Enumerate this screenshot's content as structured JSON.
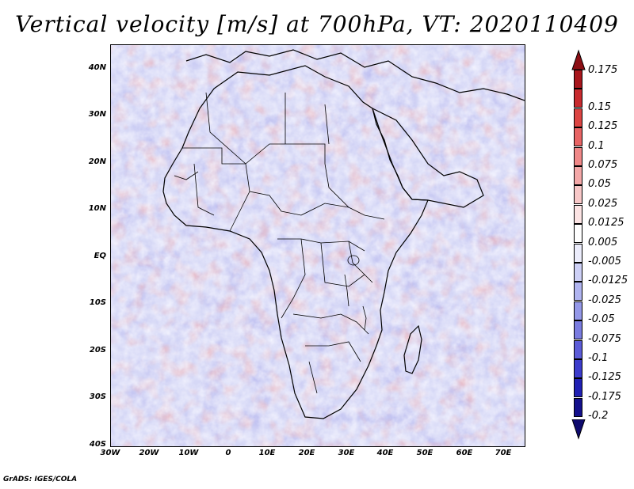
{
  "title": "Vertical velocity [m/s] at 700hPa, VT: 2020110409",
  "credit": "GrADS: IGES/COLA",
  "lat_labels": [
    "40N",
    "30N",
    "20N",
    "10N",
    "EQ",
    "10S",
    "20S",
    "30S",
    "40S"
  ],
  "lon_labels": [
    "30W",
    "20W",
    "10W",
    "0",
    "10E",
    "20E",
    "30E",
    "40E",
    "50E",
    "60E",
    "70E"
  ],
  "colorbar": {
    "levels": [
      "0.175",
      "0.15",
      "0.125",
      "0.1",
      "0.075",
      "0.05",
      "0.025",
      "0.0125",
      "0.005",
      "-0.005",
      "-0.0125",
      "-0.025",
      "-0.05",
      "-0.075",
      "-0.1",
      "-0.125",
      "-0.175",
      "-0.2"
    ],
    "colors": [
      "#a8161c",
      "#c82a2e",
      "#dc4442",
      "#e86464",
      "#f08888",
      "#f4a8a8",
      "#f8c8c8",
      "#fce4e4",
      "#ffffff",
      "#ecedfc",
      "#cdd0f6",
      "#b0b4f0",
      "#9498e8",
      "#7a7ce0",
      "#5c5cd8",
      "#3c3ccc",
      "#2020b4",
      "#14108c"
    ]
  }
}
